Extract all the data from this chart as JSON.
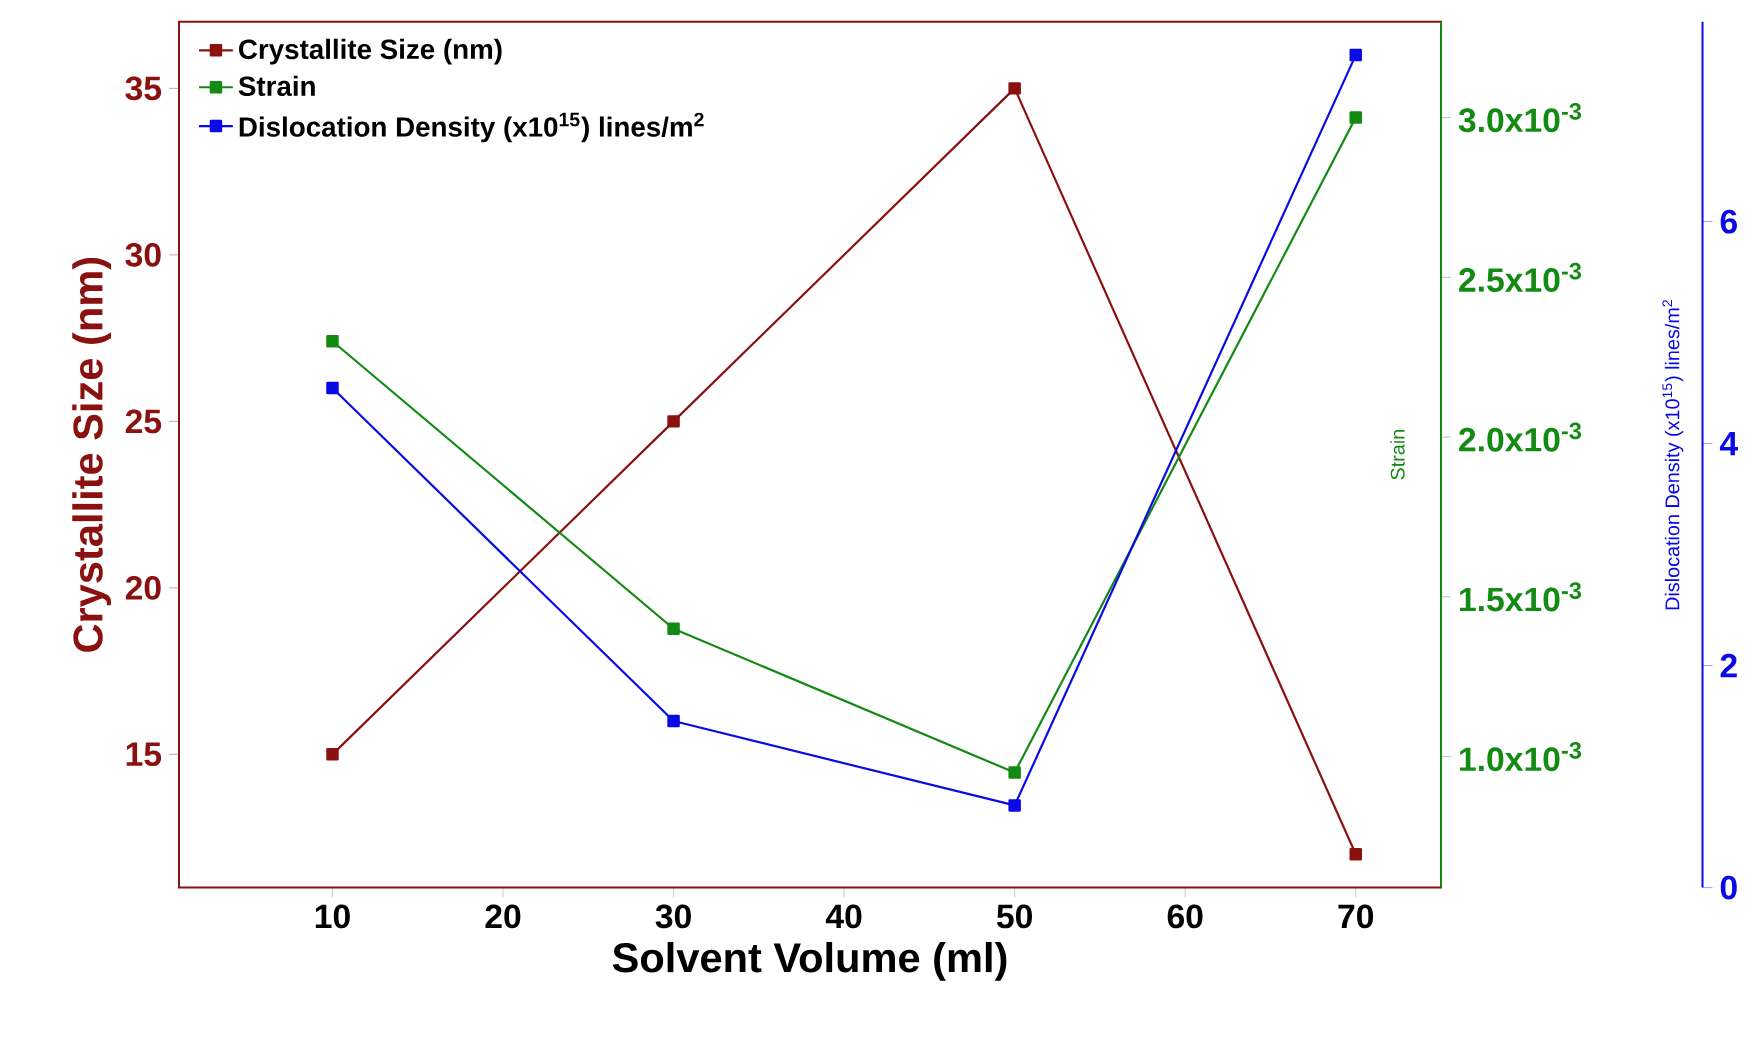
{
  "chart_data": {
    "type": "line",
    "xlabel": "Solvent Volume (ml)",
    "ylabel": "Crystallite Size (nm)",
    "y2label": "Strain",
    "y3label": "Dislocation Density (x10$^{15}$) lines/m$^{2}$",
    "x": [
      10,
      30,
      50,
      70
    ],
    "xlim": [
      1,
      75
    ],
    "xticks": [
      10,
      20,
      30,
      40,
      50,
      60,
      70
    ],
    "ylim": [
      11,
      37
    ],
    "yticks": [
      15,
      20,
      25,
      30,
      35
    ],
    "y2lim": [
      0.00059,
      0.0033
    ],
    "y2ticks": [
      {
        "value": 0.001,
        "label": "1.0x10$^{-3}$"
      },
      {
        "value": 0.0015,
        "label": "1.5x10$^{-3}$"
      },
      {
        "value": 0.002,
        "label": "2.0x10$^{-3}$"
      },
      {
        "value": 0.0025,
        "label": "2.5x10$^{-3}$"
      },
      {
        "value": 0.003,
        "label": "3.0x10$^{-3}$"
      }
    ],
    "y3lim": [
      0,
      7.8
    ],
    "y3ticks": [
      0,
      2,
      4,
      6
    ],
    "series": [
      {
        "name": "Crystallite Size (nm)",
        "color": "#8b1010",
        "values": [
          15,
          25,
          35,
          12
        ]
      },
      {
        "name": "Strain",
        "color": "#138a13",
        "axis": "y2",
        "values": [
          0.0023,
          0.0014,
          0.00095,
          0.003
        ]
      },
      {
        "name": "Dislocation Density (x10$^{15}$) lines/m$^{2}$",
        "color": "#0a0ae6",
        "axis": "y3",
        "values": [
          4.5,
          1.5,
          0.74,
          7.5
        ]
      }
    ],
    "marker": "square",
    "line_style": "solid",
    "legend": "top left"
  }
}
